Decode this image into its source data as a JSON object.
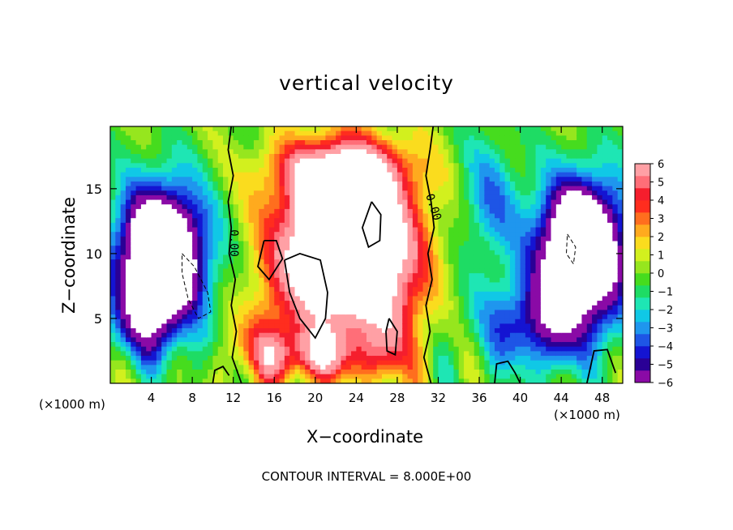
{
  "chart_data": {
    "type": "heatmap",
    "title": "vertical velocity",
    "xlabel": "X−coordinate",
    "ylabel": "Z−coordinate",
    "x_unit": "(×1000 m)",
    "x_ticks": [
      4,
      8,
      12,
      16,
      20,
      24,
      28,
      32,
      36,
      40,
      44,
      48
    ],
    "y_ticks": [
      5,
      10,
      15
    ],
    "xlim": [
      0,
      50
    ],
    "ylim": [
      0,
      19.8
    ],
    "colorbar": {
      "min": -6,
      "max": 6,
      "ticks": [
        "6",
        "5",
        "4",
        "3",
        "2",
        "1",
        "0",
        "−1",
        "−2",
        "−3",
        "−4",
        "−5",
        "−6"
      ],
      "colors": [
        "#8a0aa6",
        "#2a0095",
        "#1414d2",
        "#1e55e6",
        "#1f96ee",
        "#10c8e6",
        "#1ee6b4",
        "#1edc64",
        "#46dc1e",
        "#96e61e",
        "#d2f01e",
        "#fadc1e",
        "#ffaa1e",
        "#ff6e1e",
        "#ff2d1e",
        "#f51e2d",
        "#ff6e78",
        "#ffa0a5"
      ]
    },
    "contour_label": "0.00",
    "contour_interval_text": "CONTOUR INTERVAL = 8.000E+00",
    "features": [
      {
        "type": "updraft",
        "x_center": 23,
        "z_center": 9,
        "max_value": "> 6"
      },
      {
        "type": "downdraft",
        "x_center": 6,
        "z_center": 9,
        "min_value": "< -6"
      },
      {
        "type": "downdraft",
        "x_center": 45,
        "z_center": 10,
        "min_value": "< -6"
      }
    ]
  },
  "labels": {
    "contour_note": "CONTOUR INTERVAL = 8.000E+00"
  }
}
